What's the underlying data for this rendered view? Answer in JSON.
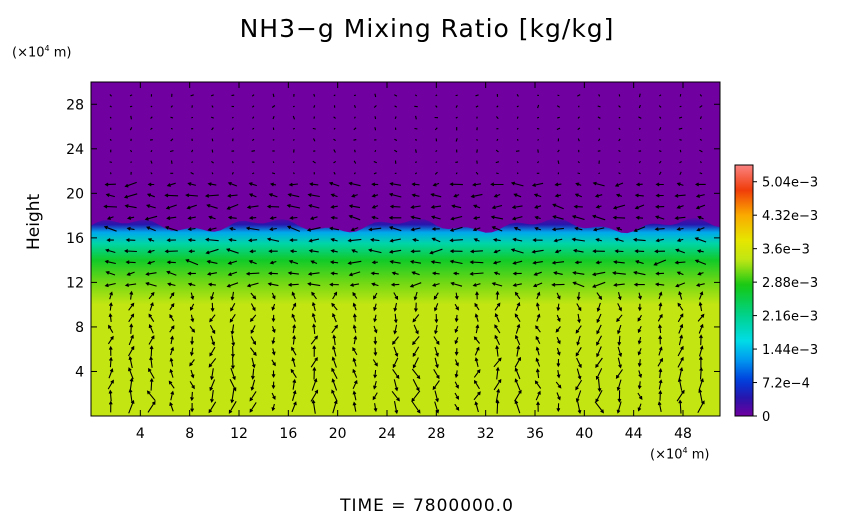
{
  "chart_data": {
    "type": "heatmap",
    "title": "NH3−g Mixing Ratio [kg/kg]",
    "ylabel": "Height",
    "y_unit": "(×10",
    "x_unit": "(×10",
    "unit_exp": "4",
    "unit_tail": " m)",
    "xlim": [
      0,
      51
    ],
    "ylim": [
      0,
      30
    ],
    "x_ticks": [
      4,
      8,
      12,
      16,
      20,
      24,
      28,
      32,
      36,
      40,
      44,
      48
    ],
    "y_ticks": [
      4,
      8,
      12,
      16,
      20,
      24,
      28
    ],
    "colorbar": {
      "min": 0,
      "max": 0.0054,
      "tick_values": [
        0,
        0.00072,
        0.00144,
        0.00216,
        0.00288,
        0.0036,
        0.00432,
        0.00504
      ],
      "tick_labels": [
        "0",
        "7.2e−4",
        "1.44e−3",
        "2.16e−3",
        "2.88e−3",
        "3.6e−3",
        "4.32e−3",
        "5.04e−3"
      ]
    },
    "field_profile": [
      {
        "height": 0,
        "value": 0.0034
      },
      {
        "height": 10,
        "value": 0.0034
      },
      {
        "height": 12,
        "value": 0.0031
      },
      {
        "height": 14,
        "value": 0.0027
      },
      {
        "height": 15.5,
        "value": 0.002
      },
      {
        "height": 16.5,
        "value": 0.0013
      },
      {
        "height": 17.2,
        "value": 0.0004
      },
      {
        "height": 18,
        "value": 0.0
      },
      {
        "height": 30,
        "value": 0.0
      }
    ],
    "vectors": "wind vector field overlay",
    "footer": "TIME  =  7800000.0"
  }
}
